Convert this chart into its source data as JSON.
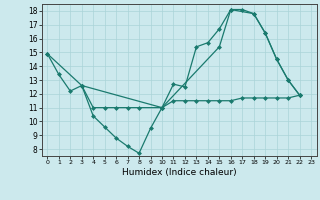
{
  "xlabel": "Humidex (Indice chaleur)",
  "background_color": "#cce9ed",
  "line_color": "#1a7a6e",
  "xlim": [
    -0.5,
    23.5
  ],
  "ylim": [
    7.5,
    18.5
  ],
  "xticks": [
    0,
    1,
    2,
    3,
    4,
    5,
    6,
    7,
    8,
    9,
    10,
    11,
    12,
    13,
    14,
    15,
    16,
    17,
    18,
    19,
    20,
    21,
    22,
    23
  ],
  "yticks": [
    8,
    9,
    10,
    11,
    12,
    13,
    14,
    15,
    16,
    17,
    18
  ],
  "line1_x": [
    0,
    1,
    2,
    3,
    4,
    5,
    6,
    7,
    8,
    9,
    10,
    11,
    12,
    13,
    14,
    15,
    16,
    17,
    18,
    19,
    20,
    21,
    22
  ],
  "line1_y": [
    14.9,
    13.4,
    12.2,
    12.6,
    10.4,
    9.6,
    8.8,
    8.2,
    7.7,
    9.5,
    11.0,
    12.7,
    12.5,
    15.4,
    15.7,
    16.7,
    18.1,
    18.1,
    17.8,
    16.4,
    14.5,
    13.0,
    11.9
  ],
  "line2_x": [
    3,
    4,
    5,
    6,
    7,
    8,
    10,
    11,
    12,
    13,
    14,
    15,
    16,
    17,
    18,
    19,
    20,
    21,
    22
  ],
  "line2_y": [
    12.6,
    11.0,
    11.0,
    11.0,
    11.0,
    11.0,
    11.0,
    11.5,
    11.5,
    11.5,
    11.5,
    11.5,
    11.5,
    11.7,
    11.7,
    11.7,
    11.7,
    11.7,
    11.9
  ],
  "line3_x": [
    0,
    3,
    10,
    15,
    16,
    18,
    19,
    20,
    21,
    22
  ],
  "line3_y": [
    14.9,
    12.6,
    11.0,
    15.4,
    18.1,
    17.8,
    16.4,
    14.5,
    13.0,
    11.9
  ]
}
